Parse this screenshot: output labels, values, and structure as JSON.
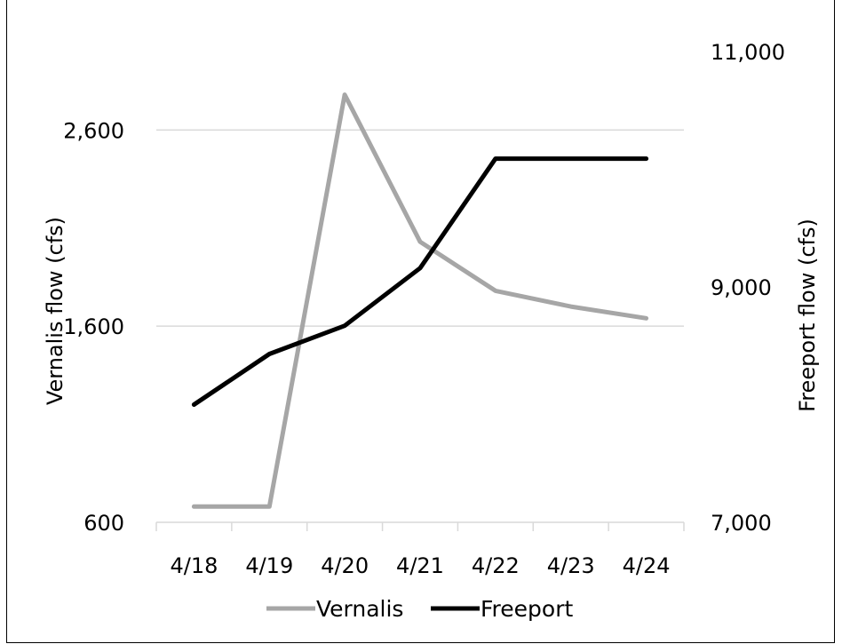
{
  "chart_data": {
    "type": "line",
    "categories": [
      "4/18",
      "4/19",
      "4/20",
      "4/21",
      "4/22",
      "4/23",
      "4/24"
    ],
    "series": [
      {
        "name": "Vernalis",
        "axis": "left",
        "color": "#a6a6a6",
        "values": [
          680,
          680,
          2780,
          2030,
          1780,
          1700,
          1640
        ]
      },
      {
        "name": "Freeport",
        "axis": "right",
        "color": "#000000",
        "values": [
          8000,
          8430,
          8670,
          9160,
          10090,
          10090,
          10090
        ]
      }
    ],
    "y_left": {
      "label": "Vernalis flow (cfs)",
      "ylim": [
        600,
        3000
      ],
      "ticks": [
        {
          "value": 600,
          "label": "600"
        },
        {
          "value": 1600,
          "label": "1,600"
        },
        {
          "value": 2600,
          "label": "2,600"
        }
      ]
    },
    "y_right": {
      "label": "Freeport flow (cfs)",
      "ylim": [
        7000,
        11000
      ],
      "ticks": [
        {
          "value": 7000,
          "label": "7,000"
        },
        {
          "value": 9000,
          "label": "9,000"
        },
        {
          "value": 11000,
          "label": "11,000"
        }
      ]
    },
    "grid": true,
    "legend": "bottom",
    "title": ""
  }
}
